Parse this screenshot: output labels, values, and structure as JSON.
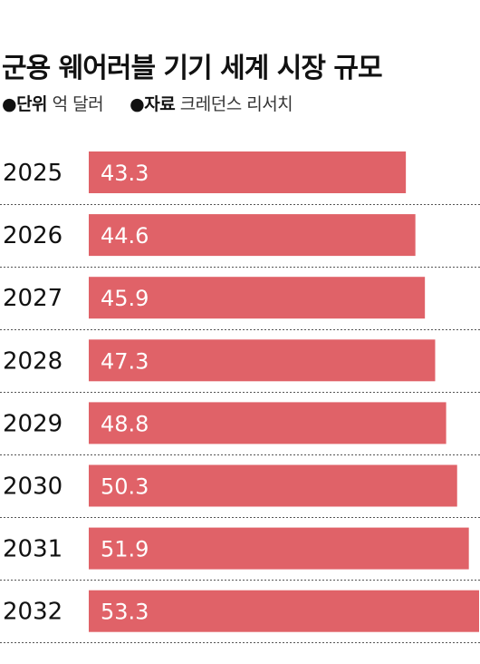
{
  "header": {
    "title": "군용 웨어러블 기기 세계 시장 규모",
    "unit_key": "●단위",
    "unit_value": "억 달러",
    "source_key": "●자료",
    "source_value": "크레던스 리서치"
  },
  "colors": {
    "bar": "#e06268",
    "bar_label": "#ffffff",
    "divider": "#555555",
    "text": "#111111"
  },
  "chart_data": {
    "type": "bar",
    "orientation": "horizontal",
    "title": "군용 웨어러블 기기 세계 시장 규모",
    "unit": "억 달러",
    "categories": [
      "2025",
      "2026",
      "2027",
      "2028",
      "2029",
      "2030",
      "2031",
      "2032"
    ],
    "values": [
      43.3,
      44.6,
      45.9,
      47.3,
      48.8,
      50.3,
      51.9,
      53.3
    ],
    "value_labels": [
      "43.3",
      "44.6",
      "45.9",
      "47.3",
      "48.8",
      "50.3",
      "51.9",
      "53.3"
    ],
    "xlim": [
      0,
      53.3
    ],
    "grid": false,
    "legend": "none"
  }
}
